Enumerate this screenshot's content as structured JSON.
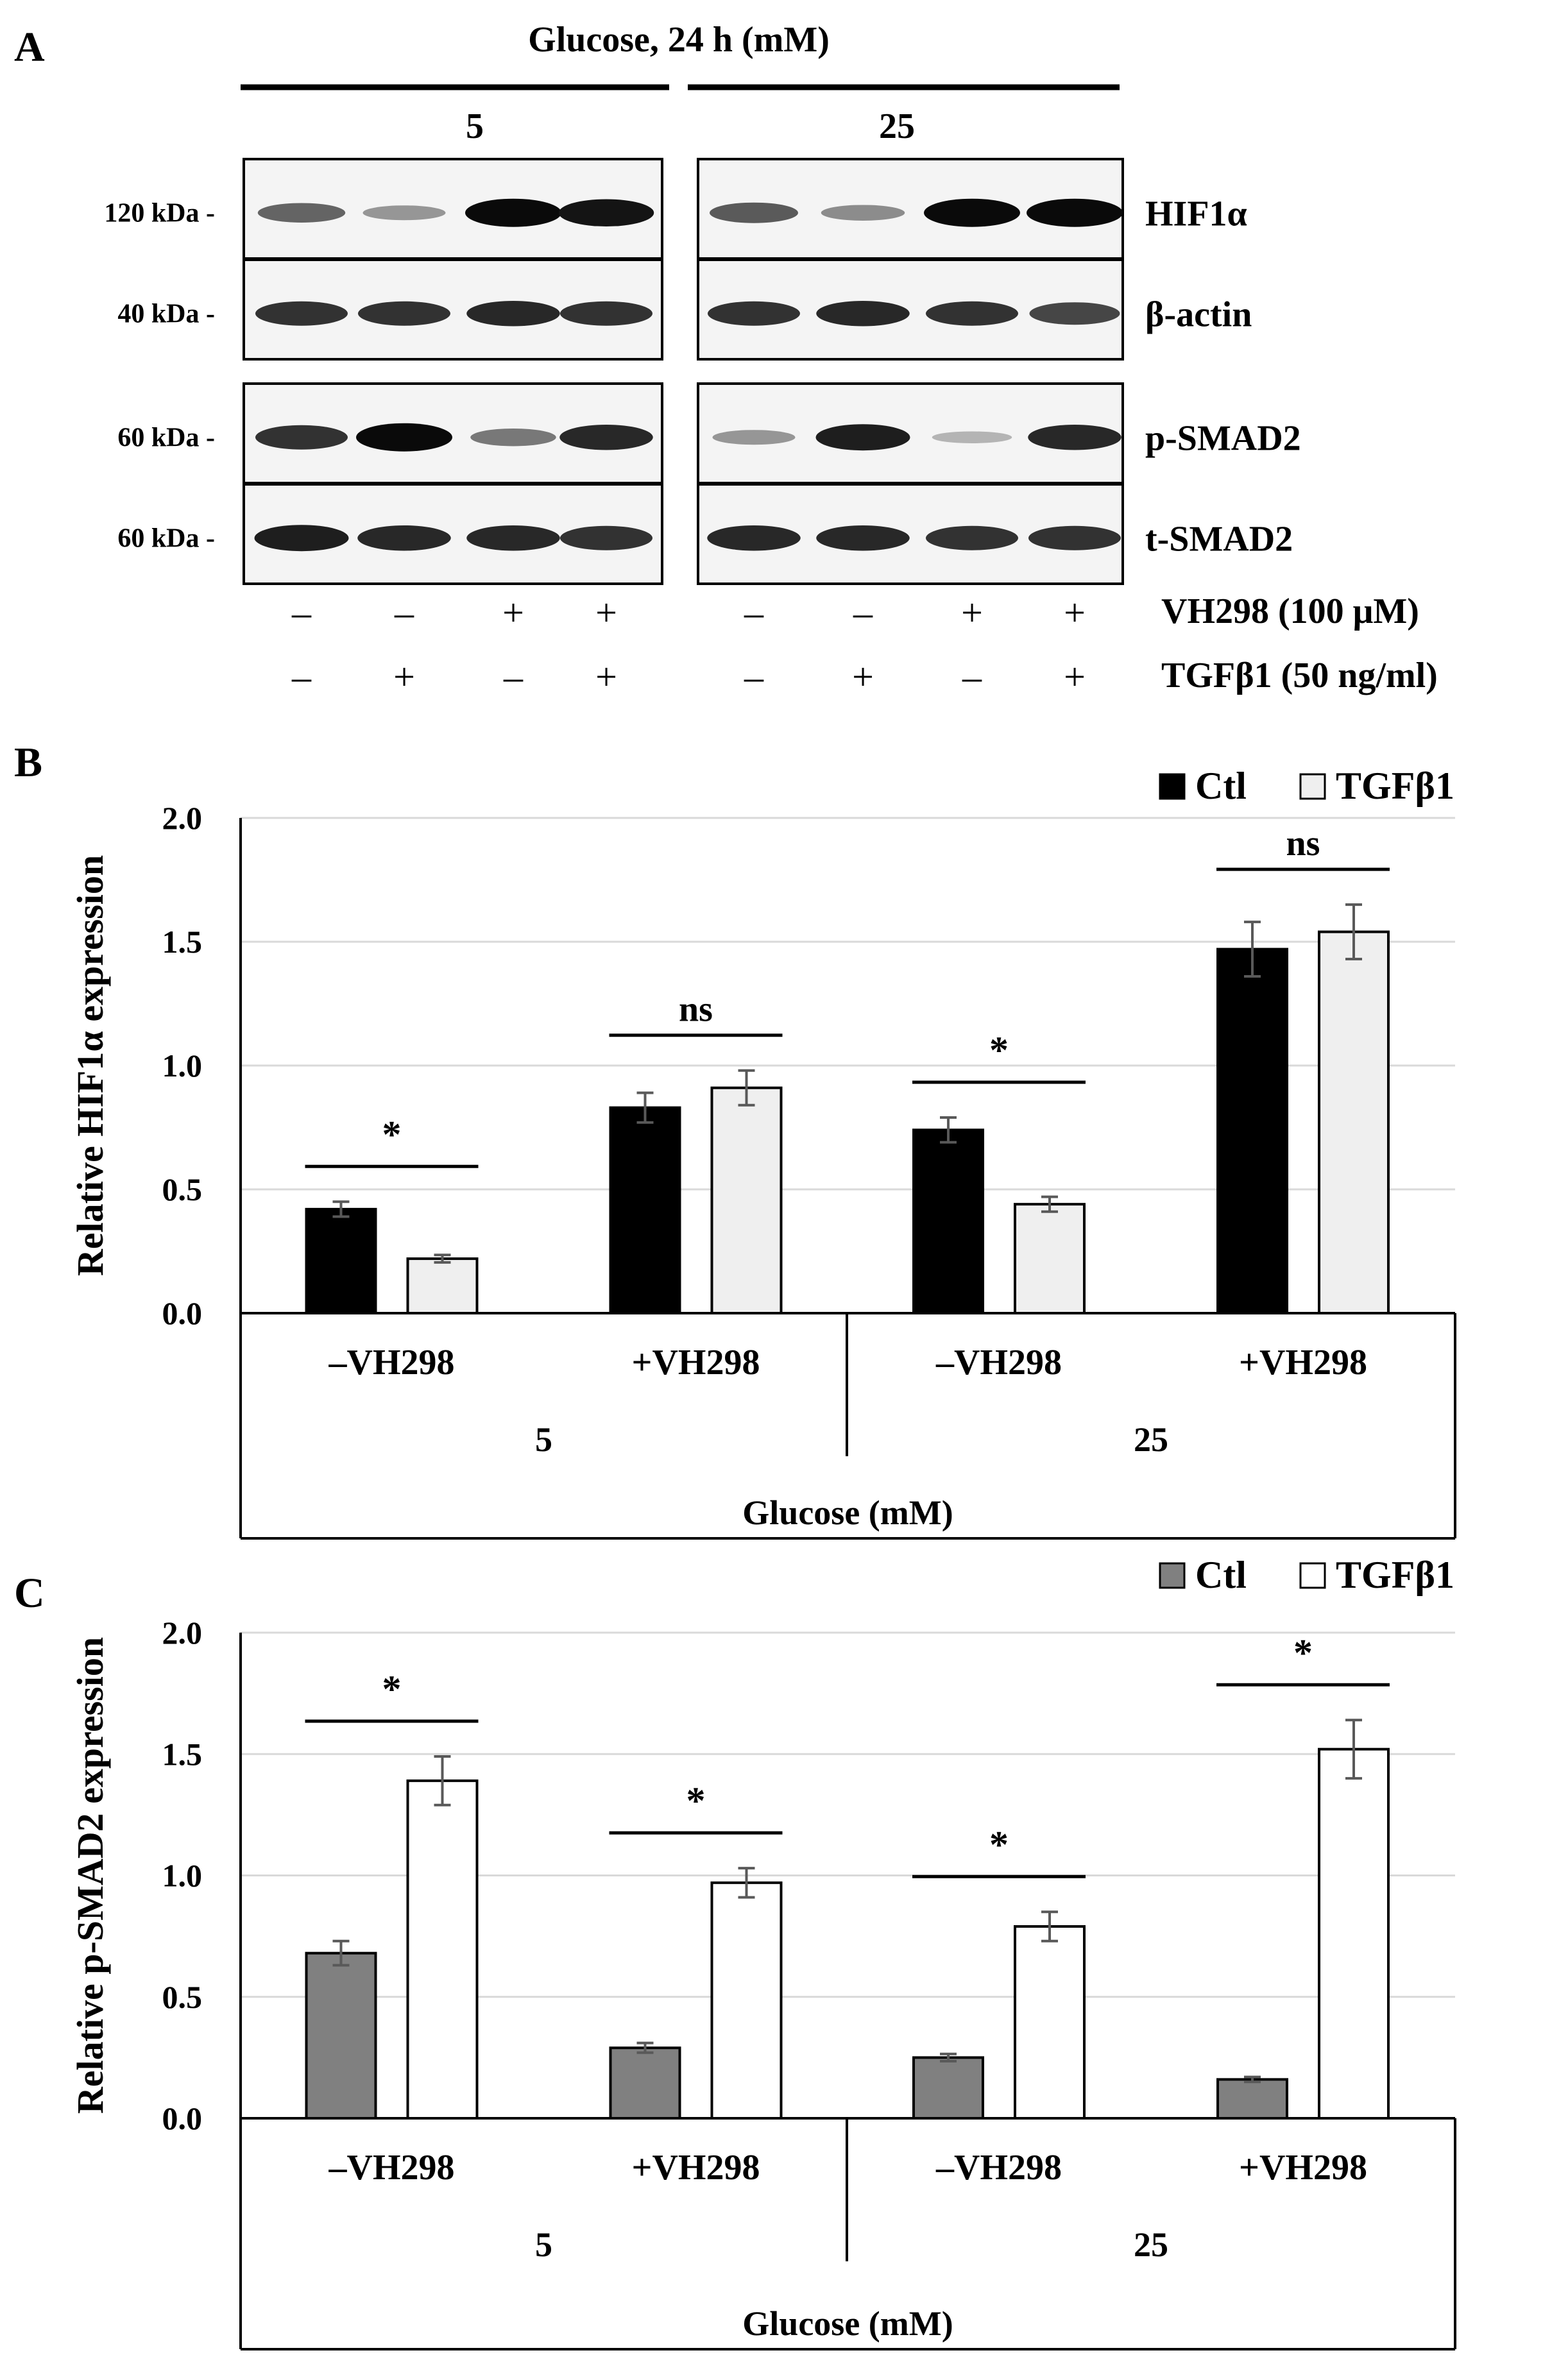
{
  "panels": {
    "a": {
      "letter": "A"
    },
    "b": {
      "letter": "B"
    },
    "c": {
      "letter": "C"
    }
  },
  "blot": {
    "header": "Glucose, 24 h (mM)",
    "groups": [
      "5",
      "25"
    ],
    "rows": [
      {
        "marker": "120 kDa -",
        "protein": "HIF1α",
        "band_intensity": [
          [
            0.55,
            0.3,
            1.0,
            0.95
          ],
          [
            0.6,
            0.35,
            1.0,
            1.0
          ]
        ]
      },
      {
        "marker": "40 kDa -",
        "protein": "β-actin",
        "band_intensity": [
          [
            0.8,
            0.8,
            0.85,
            0.8
          ],
          [
            0.8,
            0.85,
            0.8,
            0.7
          ]
        ]
      },
      {
        "marker": "60 kDa -",
        "protein": "p-SMAD2",
        "band_intensity": [
          [
            0.8,
            1.0,
            0.45,
            0.85
          ],
          [
            0.3,
            0.9,
            0.15,
            0.85
          ]
        ]
      },
      {
        "marker": "60 kDa -",
        "protein": "t-SMAD2",
        "band_intensity": [
          [
            0.9,
            0.85,
            0.85,
            0.8
          ],
          [
            0.85,
            0.85,
            0.8,
            0.8
          ]
        ]
      }
    ],
    "treatments": [
      {
        "label": "VH298 (100 μM)",
        "signs": [
          "–",
          "–",
          "+",
          "+",
          "–",
          "–",
          "+",
          "+"
        ]
      },
      {
        "label": "TGFβ1 (50 ng/ml)",
        "signs": [
          "–",
          "+",
          "–",
          "+",
          "–",
          "+",
          "–",
          "+"
        ]
      }
    ]
  },
  "chart_data": [
    {
      "type": "bar",
      "ylabel": "Relative HIF1α expression",
      "xlabel": "Glucose (mM)",
      "ylim": [
        0,
        2.0
      ],
      "yticks": [
        "0.0",
        "0.5",
        "1.0",
        "1.5",
        "2.0"
      ],
      "gridlines": true,
      "legend_position": "top-right",
      "categories": [
        "–VH298",
        "+VH298",
        "–VH298",
        "+VH298"
      ],
      "groups": [
        "5",
        "25"
      ],
      "series": [
        {
          "name": "Ctl",
          "color": "#000000",
          "values": [
            0.42,
            0.83,
            0.74,
            1.47
          ],
          "errors": [
            0.03,
            0.06,
            0.05,
            0.11
          ]
        },
        {
          "name": "TGFβ1",
          "color": "#efefef",
          "values": [
            0.22,
            0.91,
            0.44,
            1.54
          ],
          "errors": [
            0.015,
            0.07,
            0.03,
            0.11
          ]
        }
      ],
      "significance": [
        "*",
        "ns",
        "*",
        "ns"
      ]
    },
    {
      "type": "bar",
      "ylabel": "Relative p-SMAD2 expression",
      "xlabel": "Glucose (mM)",
      "ylim": [
        0,
        2.0
      ],
      "yticks": [
        "0.0",
        "0.5",
        "1.0",
        "1.5",
        "2.0"
      ],
      "gridlines": true,
      "legend_position": "top-right",
      "categories": [
        "–VH298",
        "+VH298",
        "–VH298",
        "+VH298"
      ],
      "groups": [
        "5",
        "25"
      ],
      "series": [
        {
          "name": "Ctl",
          "color": "#808080",
          "values": [
            0.68,
            0.29,
            0.25,
            0.16
          ],
          "errors": [
            0.05,
            0.02,
            0.015,
            0.01
          ]
        },
        {
          "name": "TGFβ1",
          "color": "#ffffff",
          "values": [
            1.39,
            0.97,
            0.79,
            1.52
          ],
          "errors": [
            0.1,
            0.06,
            0.06,
            0.12
          ]
        }
      ],
      "significance": [
        "*",
        "*",
        "*",
        "*"
      ]
    }
  ]
}
